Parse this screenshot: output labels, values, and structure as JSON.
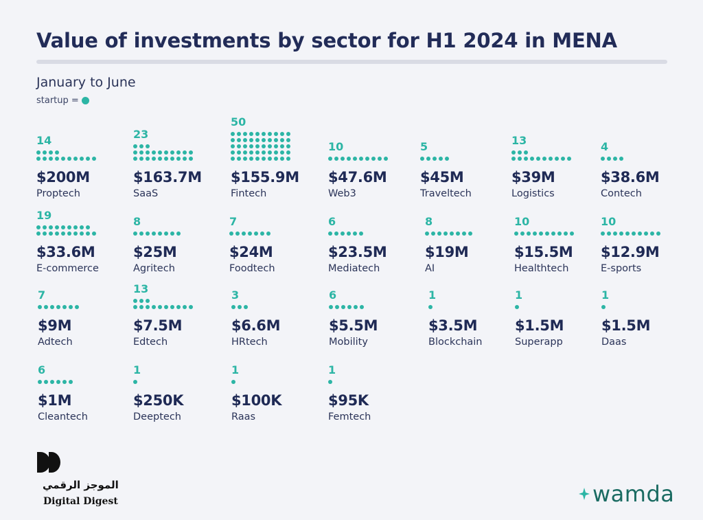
{
  "title": "Value of investments by sector for H1 2024 in MENA",
  "subtitle": "January to June",
  "legend": {
    "label": "startup =",
    "dot_color": "#2cb5a5"
  },
  "colors": {
    "accent": "#2cb5a5",
    "text": "#1f2a55",
    "background": "#f3f4f8"
  },
  "chart_data": {
    "type": "table",
    "unit_symbol": "startup",
    "sectors": [
      {
        "name": "Proptech",
        "value_label": "$200M",
        "value_usd_m": 200,
        "startups": 14
      },
      {
        "name": "SaaS",
        "value_label": "$163.7M",
        "value_usd_m": 163.7,
        "startups": 23
      },
      {
        "name": "Fintech",
        "value_label": "$155.9M",
        "value_usd_m": 155.9,
        "startups": 50
      },
      {
        "name": "Web3",
        "value_label": "$47.6M",
        "value_usd_m": 47.6,
        "startups": 10
      },
      {
        "name": "Traveltech",
        "value_label": "$45M",
        "value_usd_m": 45,
        "startups": 5
      },
      {
        "name": "Logistics",
        "value_label": "$39M",
        "value_usd_m": 39,
        "startups": 13
      },
      {
        "name": "Contech",
        "value_label": "$38.6M",
        "value_usd_m": 38.6,
        "startups": 4
      },
      {
        "name": "E-commerce",
        "value_label": "$33.6M",
        "value_usd_m": 33.6,
        "startups": 19
      },
      {
        "name": "Agritech",
        "value_label": "$25M",
        "value_usd_m": 25,
        "startups": 8
      },
      {
        "name": "Foodtech",
        "value_label": "$24M",
        "value_usd_m": 24,
        "startups": 7
      },
      {
        "name": "Mediatech",
        "value_label": "$23.5M",
        "value_usd_m": 23.5,
        "startups": 6
      },
      {
        "name": "AI",
        "value_label": "$19M",
        "value_usd_m": 19,
        "startups": 8
      },
      {
        "name": "Healthtech",
        "value_label": "$15.5M",
        "value_usd_m": 15.5,
        "startups": 10
      },
      {
        "name": "E-sports",
        "value_label": "$12.9M",
        "value_usd_m": 12.9,
        "startups": 10
      },
      {
        "name": "Adtech",
        "value_label": "$9M",
        "value_usd_m": 9,
        "startups": 7
      },
      {
        "name": "Edtech",
        "value_label": "$7.5M",
        "value_usd_m": 7.5,
        "startups": 13
      },
      {
        "name": "HRtech",
        "value_label": "$6.6M",
        "value_usd_m": 6.6,
        "startups": 3
      },
      {
        "name": "Mobility",
        "value_label": "$5.5M",
        "value_usd_m": 5.5,
        "startups": 6
      },
      {
        "name": "Blockchain",
        "value_label": "$3.5M",
        "value_usd_m": 3.5,
        "startups": 1
      },
      {
        "name": "Superapp",
        "value_label": "$1.5M",
        "value_usd_m": 1.5,
        "startups": 1
      },
      {
        "name": "Daas",
        "value_label": "$1.5M",
        "value_usd_m": 1.5,
        "startups": 1
      },
      {
        "name": "Cleantech",
        "value_label": "$1M",
        "value_usd_m": 1,
        "startups": 6
      },
      {
        "name": "Deeptech",
        "value_label": "$250K",
        "value_usd_m": 0.25,
        "startups": 1
      },
      {
        "name": "Raas",
        "value_label": "$100K",
        "value_usd_m": 0.1,
        "startups": 1
      },
      {
        "name": "Femtech",
        "value_label": "$95K",
        "value_usd_m": 0.095,
        "startups": 1
      }
    ]
  },
  "branding": {
    "digital_digest_arabic": "الموجز الرقمي",
    "digital_digest_name": "Digital Digest",
    "wamda": "wamda"
  }
}
